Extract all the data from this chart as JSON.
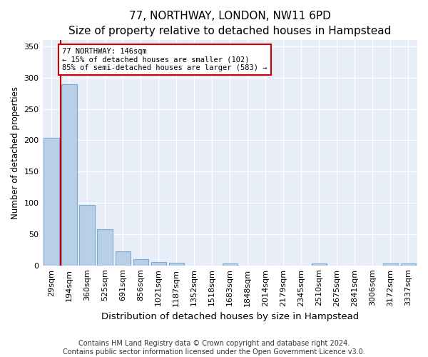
{
  "title": "77, NORTHWAY, LONDON, NW11 6PD",
  "subtitle": "Size of property relative to detached houses in Hampstead",
  "xlabel": "Distribution of detached houses by size in Hampstead",
  "ylabel": "Number of detached properties",
  "categories": [
    "29sqm",
    "194sqm",
    "360sqm",
    "525sqm",
    "691sqm",
    "856sqm",
    "1021sqm",
    "1187sqm",
    "1352sqm",
    "1518sqm",
    "1683sqm",
    "1848sqm",
    "2014sqm",
    "2179sqm",
    "2345sqm",
    "2510sqm",
    "2675sqm",
    "2841sqm",
    "3006sqm",
    "3172sqm",
    "3337sqm"
  ],
  "values": [
    204,
    290,
    97,
    58,
    22,
    10,
    5,
    4,
    0,
    0,
    3,
    0,
    0,
    0,
    0,
    3,
    0,
    0,
    0,
    3,
    3
  ],
  "bar_color": "#b8cfe8",
  "bar_edge_color": "#7aaad0",
  "marker_color": "#cc0000",
  "annotation_text": "77 NORTHWAY: 146sqm\n← 15% of detached houses are smaller (102)\n85% of semi-detached houses are larger (583) →",
  "annotation_box_color": "white",
  "annotation_box_edge": "#cc0000",
  "ylim": [
    0,
    360
  ],
  "yticks": [
    0,
    50,
    100,
    150,
    200,
    250,
    300,
    350
  ],
  "footer_text": "Contains HM Land Registry data © Crown copyright and database right 2024.\nContains public sector information licensed under the Open Government Licence v3.0.",
  "title_fontsize": 11,
  "subtitle_fontsize": 9.5,
  "xlabel_fontsize": 9.5,
  "ylabel_fontsize": 8.5,
  "tick_fontsize": 8,
  "footer_fontsize": 7,
  "bg_color": "#e8eef8"
}
